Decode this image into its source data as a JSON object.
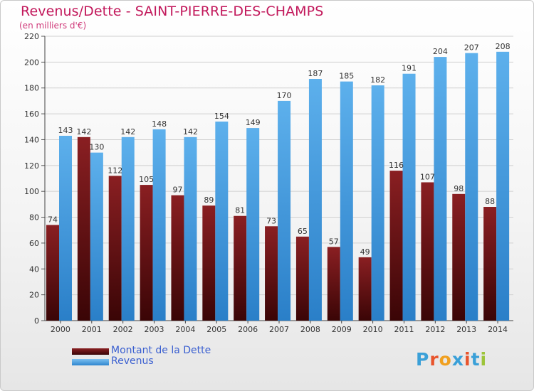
{
  "title": "Revenus/Dette - SAINT-PIERRE-DES-CHAMPS",
  "subtitle": "(en milliers d'€)",
  "colors": {
    "dette": "#7a1518",
    "revenus": "#3f9ae0",
    "title": "#c2185b",
    "legend_text": "#3a5fd0"
  },
  "legend": [
    {
      "label": "Montant de la Dette",
      "color": "#6b0f12"
    },
    {
      "label": "Revenus",
      "color": "#3f9ae0"
    }
  ],
  "logo": {
    "letters": [
      "P",
      "r",
      "o",
      "x",
      "i",
      "t",
      "i"
    ],
    "colors": [
      "#3aa0d8",
      "#e8542c",
      "#f0a020",
      "#3aa0d8",
      "#e8542c",
      "#3aa0d8",
      "#9dc43a"
    ]
  },
  "chart_data": {
    "type": "bar",
    "title": "Revenus/Dette - SAINT-PIERRE-DES-CHAMPS",
    "subtitle": "(en milliers d'€)",
    "categories": [
      "2000",
      "2001",
      "2002",
      "2003",
      "2004",
      "2005",
      "2006",
      "2007",
      "2008",
      "2009",
      "2010",
      "2011",
      "2012",
      "2013",
      "2014"
    ],
    "series": [
      {
        "name": "Montant de la Dette",
        "values": [
          74,
          142,
          112,
          105,
          97,
          89,
          81,
          73,
          65,
          57,
          49,
          116,
          107,
          98,
          88
        ]
      },
      {
        "name": "Revenus",
        "values": [
          143,
          130,
          142,
          148,
          142,
          154,
          149,
          170,
          187,
          185,
          182,
          191,
          204,
          207,
          208
        ]
      }
    ],
    "ylim": [
      0,
      220
    ],
    "yticks": [
      0,
      20,
      40,
      60,
      80,
      100,
      120,
      140,
      160,
      180,
      200,
      220
    ],
    "grid": true,
    "legend_position": "bottom-left"
  }
}
